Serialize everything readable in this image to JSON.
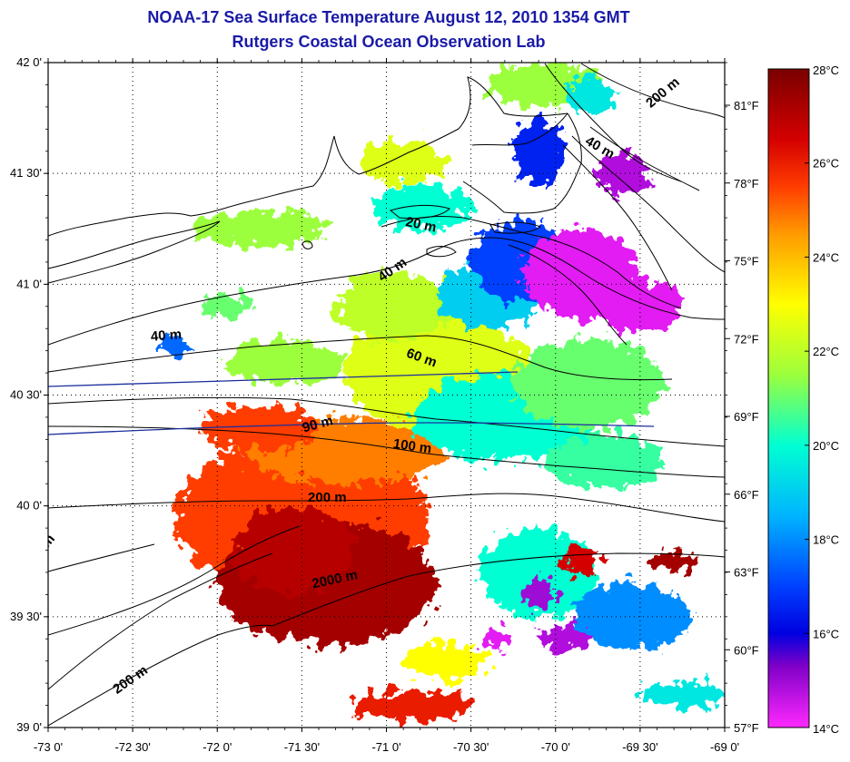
{
  "header": {
    "title": "NOAA-17 Sea Surface Temperature August 12, 2010 1354 GMT",
    "subtitle": "Rutgers Coastal Ocean Observation Lab"
  },
  "map": {
    "lat_range": [
      39.0,
      42.0
    ],
    "lon_range": [
      -73.0,
      -69.0
    ],
    "lat_ticks": [
      {
        "value": 42.0,
        "label": "42 0'"
      },
      {
        "value": 41.5,
        "label": "41 30'"
      },
      {
        "value": 41.0,
        "label": "41 0'"
      },
      {
        "value": 40.5,
        "label": "40 30'"
      },
      {
        "value": 40.0,
        "label": "40 0'"
      },
      {
        "value": 39.5,
        "label": "39 30'"
      },
      {
        "value": 39.0,
        "label": "39 0'"
      }
    ],
    "lon_ticks": [
      {
        "value": -73.0,
        "label": "-73 0'"
      },
      {
        "value": -72.5,
        "label": "-72 30'"
      },
      {
        "value": -72.0,
        "label": "-72 0'"
      },
      {
        "value": -71.5,
        "label": "-71 30'"
      },
      {
        "value": -71.0,
        "label": "-71 0'"
      },
      {
        "value": -70.5,
        "label": "-70 30'"
      },
      {
        "value": -70.0,
        "label": "-70 0'"
      },
      {
        "value": -69.5,
        "label": "-69 30'"
      },
      {
        "value": -69.0,
        "label": "-69 0'"
      }
    ],
    "f_ticks": [
      {
        "value": 81,
        "label": "81°F"
      },
      {
        "value": 78,
        "label": "78°F"
      },
      {
        "value": 75,
        "label": "75°F"
      },
      {
        "value": 72,
        "label": "72°F"
      },
      {
        "value": 69,
        "label": "69°F"
      },
      {
        "value": 66,
        "label": "66°F"
      },
      {
        "value": 63,
        "label": "63°F"
      },
      {
        "value": 60,
        "label": "60°F"
      },
      {
        "value": 57,
        "label": "57°F"
      }
    ],
    "contour_labels": [
      {
        "text": "20 m",
        "lon": -70.8,
        "lat": 41.25,
        "angle": 12
      },
      {
        "text": "40 m",
        "lon": -70.95,
        "lat": 41.05,
        "angle": -35
      },
      {
        "text": "40 m",
        "lon": -72.3,
        "lat": 40.75,
        "angle": -5
      },
      {
        "text": "40 m",
        "lon": -69.75,
        "lat": 41.6,
        "angle": 30
      },
      {
        "text": "60 m",
        "lon": -70.8,
        "lat": 40.65,
        "angle": 20
      },
      {
        "text": "90 m",
        "lon": -71.4,
        "lat": 40.35,
        "angle": -15
      },
      {
        "text": "100 m",
        "lon": -70.85,
        "lat": 40.25,
        "angle": 8
      },
      {
        "text": "200 m",
        "lon": -71.35,
        "lat": 40.02,
        "angle": 0
      },
      {
        "text": "200 m",
        "lon": -69.35,
        "lat": 41.85,
        "angle": -40
      },
      {
        "text": "200 m",
        "lon": -72.5,
        "lat": 39.2,
        "angle": -35
      },
      {
        "text": "2000 m",
        "lon": -71.3,
        "lat": 39.65,
        "angle": -12
      },
      {
        "text": "m",
        "lon": -72.98,
        "lat": 39.83,
        "angle": -50
      }
    ]
  },
  "colorbar": {
    "c_min": 14,
    "c_max": 28,
    "f_min": 57,
    "f_max": 82.4,
    "c_ticks": [
      {
        "value": 28,
        "label": "28°C"
      },
      {
        "value": 26,
        "label": "26°C"
      },
      {
        "value": 24,
        "label": "24°C"
      },
      {
        "value": 22,
        "label": "22°C"
      },
      {
        "value": 20,
        "label": "20°C"
      },
      {
        "value": 18,
        "label": "18°C"
      },
      {
        "value": 16,
        "label": "16°C"
      },
      {
        "value": 14,
        "label": "14°C"
      }
    ],
    "stops": [
      {
        "c": 28,
        "color": "#7a0000"
      },
      {
        "c": 26.5,
        "color": "#d40000"
      },
      {
        "c": 25.5,
        "color": "#ff3c00"
      },
      {
        "c": 24.5,
        "color": "#ff9a00"
      },
      {
        "c": 23,
        "color": "#ffff00"
      },
      {
        "c": 21.5,
        "color": "#9cff3c"
      },
      {
        "c": 20,
        "color": "#00ffd2"
      },
      {
        "c": 18.5,
        "color": "#00b4ff"
      },
      {
        "c": 17,
        "color": "#0040ff"
      },
      {
        "c": 16,
        "color": "#0000e0"
      },
      {
        "c": 15.3,
        "color": "#8000c8"
      },
      {
        "c": 14,
        "color": "#ff28ff"
      }
    ]
  },
  "sst_patches": [
    {
      "c": 25.5,
      "lon": -71.5,
      "lat": 39.95,
      "rx": 0.75,
      "ry": 0.35
    },
    {
      "c": 27.3,
      "lon": -71.35,
      "lat": 39.65,
      "rx": 0.65,
      "ry": 0.28
    },
    {
      "c": 27.0,
      "lon": -71.55,
      "lat": 39.8,
      "rx": 0.35,
      "ry": 0.2
    },
    {
      "c": 24.8,
      "lon": -71.25,
      "lat": 40.25,
      "rx": 0.6,
      "ry": 0.15
    },
    {
      "c": 25.5,
      "lon": -71.75,
      "lat": 40.35,
      "rx": 0.35,
      "ry": 0.1
    },
    {
      "c": 22.5,
      "lon": -70.7,
      "lat": 40.6,
      "rx": 0.55,
      "ry": 0.25
    },
    {
      "c": 22.0,
      "lon": -70.95,
      "lat": 40.9,
      "rx": 0.35,
      "ry": 0.15
    },
    {
      "c": 21.5,
      "lon": -71.6,
      "lat": 40.65,
      "rx": 0.35,
      "ry": 0.1
    },
    {
      "c": 20.0,
      "lon": -70.3,
      "lat": 40.4,
      "rx": 0.55,
      "ry": 0.2
    },
    {
      "c": 21.0,
      "lon": -69.8,
      "lat": 40.55,
      "rx": 0.45,
      "ry": 0.2
    },
    {
      "c": 20.5,
      "lon": -69.7,
      "lat": 40.2,
      "rx": 0.35,
      "ry": 0.12
    },
    {
      "c": 19.0,
      "lon": -70.4,
      "lat": 40.95,
      "rx": 0.3,
      "ry": 0.15
    },
    {
      "c": 17.0,
      "lon": -70.2,
      "lat": 41.1,
      "rx": 0.3,
      "ry": 0.18
    },
    {
      "c": 14.3,
      "lon": -69.85,
      "lat": 41.05,
      "rx": 0.35,
      "ry": 0.2
    },
    {
      "c": 14.3,
      "lon": -69.5,
      "lat": 40.9,
      "rx": 0.25,
      "ry": 0.12
    },
    {
      "c": 14.8,
      "lon": -69.6,
      "lat": 41.5,
      "rx": 0.15,
      "ry": 0.1
    },
    {
      "c": 16.5,
      "lon": -70.1,
      "lat": 41.6,
      "rx": 0.15,
      "ry": 0.15
    },
    {
      "c": 20.0,
      "lon": -70.8,
      "lat": 41.35,
      "rx": 0.3,
      "ry": 0.1
    },
    {
      "c": 22.5,
      "lon": -70.9,
      "lat": 41.55,
      "rx": 0.25,
      "ry": 0.1
    },
    {
      "c": 21.5,
      "lon": -70.05,
      "lat": 41.9,
      "rx": 0.35,
      "ry": 0.1
    },
    {
      "c": 19.5,
      "lon": -69.8,
      "lat": 41.85,
      "rx": 0.15,
      "ry": 0.08
    },
    {
      "c": 21.5,
      "lon": -71.75,
      "lat": 41.25,
      "rx": 0.4,
      "ry": 0.08
    },
    {
      "c": 20.0,
      "lon": -70.1,
      "lat": 39.7,
      "rx": 0.35,
      "ry": 0.2
    },
    {
      "c": 18.0,
      "lon": -69.55,
      "lat": 39.5,
      "rx": 0.35,
      "ry": 0.15
    },
    {
      "c": 14.8,
      "lon": -69.95,
      "lat": 39.4,
      "rx": 0.15,
      "ry": 0.06
    },
    {
      "c": 15.0,
      "lon": -70.1,
      "lat": 39.6,
      "rx": 0.1,
      "ry": 0.07
    },
    {
      "c": 26.5,
      "lon": -69.85,
      "lat": 39.75,
      "rx": 0.12,
      "ry": 0.06
    },
    {
      "c": 27.3,
      "lon": -69.3,
      "lat": 39.75,
      "rx": 0.12,
      "ry": 0.04
    },
    {
      "c": 26.0,
      "lon": -70.85,
      "lat": 39.1,
      "rx": 0.35,
      "ry": 0.07
    },
    {
      "c": 23.0,
      "lon": -70.65,
      "lat": 39.3,
      "rx": 0.25,
      "ry": 0.08
    },
    {
      "c": 19.5,
      "lon": -69.25,
      "lat": 39.15,
      "rx": 0.25,
      "ry": 0.06
    },
    {
      "c": 14.3,
      "lon": -70.35,
      "lat": 39.4,
      "rx": 0.08,
      "ry": 0.05
    },
    {
      "c": 17.5,
      "lon": -72.25,
      "lat": 40.72,
      "rx": 0.1,
      "ry": 0.04
    },
    {
      "c": 21.0,
      "lon": -71.95,
      "lat": 40.9,
      "rx": 0.15,
      "ry": 0.05
    }
  ]
}
